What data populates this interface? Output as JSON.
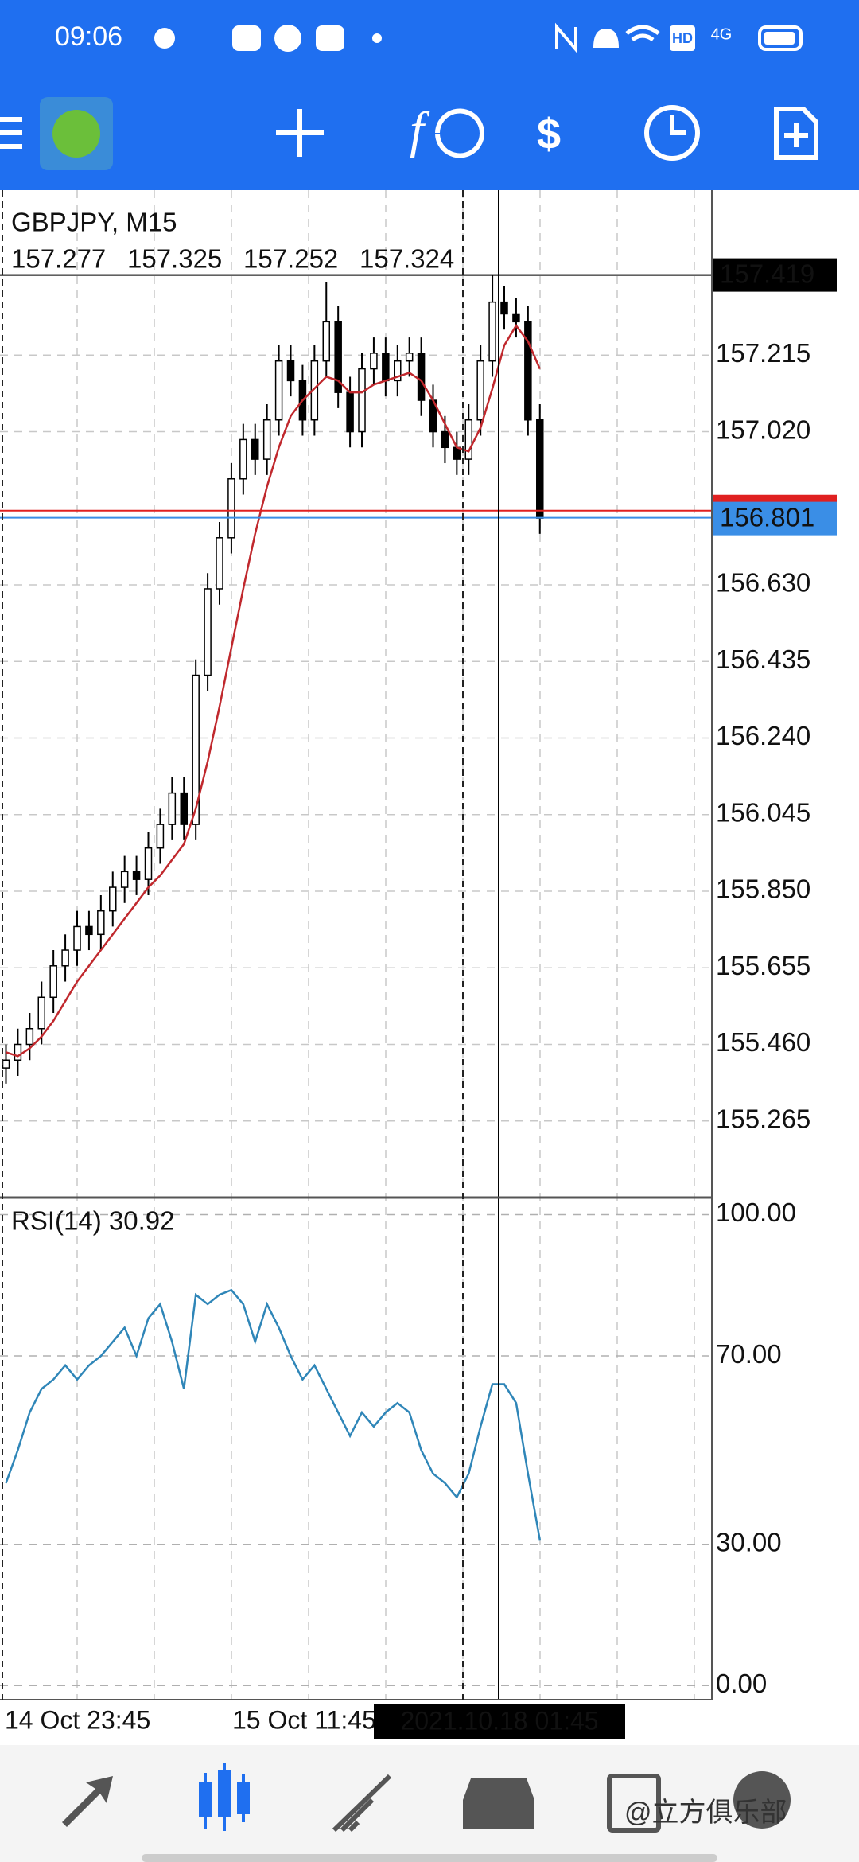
{
  "status_bar": {
    "time": "09:06",
    "hd": "HD",
    "network": "4G"
  },
  "chart_data": {
    "type": "candlestick",
    "title": "GBPJPY, M15",
    "info_values": [
      157.277,
      157.325,
      157.252,
      157.324
    ],
    "open": [
      155.4,
      155.42,
      155.46,
      155.5,
      155.58,
      155.66,
      155.7,
      155.76,
      155.74,
      155.8,
      155.86,
      155.9,
      155.88,
      155.96,
      156.02,
      156.1,
      156.02,
      156.4,
      156.62,
      156.75,
      156.9,
      157.0,
      156.95,
      157.05,
      157.2,
      157.15,
      157.05,
      157.2,
      157.3,
      157.12,
      157.02,
      157.18,
      157.22,
      157.15,
      157.2,
      157.22,
      157.1,
      157.02,
      156.98,
      156.95,
      157.05,
      157.2,
      157.35,
      157.32,
      157.3,
      157.05
    ],
    "high": [
      155.46,
      155.5,
      155.54,
      155.62,
      155.7,
      155.74,
      155.8,
      155.8,
      155.84,
      155.9,
      155.94,
      155.94,
      156.0,
      156.06,
      156.14,
      156.14,
      156.44,
      156.66,
      156.79,
      156.94,
      157.04,
      157.04,
      157.09,
      157.24,
      157.24,
      157.19,
      157.24,
      157.4,
      157.34,
      157.16,
      157.22,
      157.26,
      157.26,
      157.24,
      157.26,
      157.26,
      157.14,
      157.06,
      157.02,
      157.09,
      157.24,
      157.42,
      157.39,
      157.36,
      157.34,
      157.09
    ],
    "low": [
      155.36,
      155.38,
      155.42,
      155.46,
      155.54,
      155.62,
      155.66,
      155.7,
      155.7,
      155.76,
      155.82,
      155.84,
      155.84,
      155.92,
      155.98,
      155.98,
      155.98,
      156.36,
      156.58,
      156.71,
      156.86,
      156.91,
      156.91,
      157.01,
      157.11,
      157.01,
      157.01,
      157.16,
      157.08,
      156.98,
      156.98,
      157.14,
      157.11,
      157.11,
      157.16,
      157.06,
      156.98,
      156.94,
      156.91,
      156.91,
      157.01,
      157.16,
      157.28,
      157.26,
      157.01,
      156.76
    ],
    "close": [
      155.42,
      155.46,
      155.5,
      155.58,
      155.66,
      155.7,
      155.76,
      155.74,
      155.8,
      155.86,
      155.9,
      155.88,
      155.96,
      156.02,
      156.1,
      156.02,
      156.4,
      156.62,
      156.75,
      156.9,
      157.0,
      156.95,
      157.05,
      157.2,
      157.15,
      157.05,
      157.2,
      157.3,
      157.12,
      157.02,
      157.18,
      157.22,
      157.15,
      157.2,
      157.22,
      157.1,
      157.02,
      156.98,
      156.95,
      157.05,
      157.2,
      157.35,
      157.32,
      157.3,
      157.05,
      156.8
    ],
    "ma": {
      "color": "#c0282d",
      "values": [
        155.44,
        155.43,
        155.45,
        155.48,
        155.52,
        155.57,
        155.62,
        155.66,
        155.7,
        155.74,
        155.78,
        155.82,
        155.86,
        155.89,
        155.93,
        155.97,
        156.06,
        156.18,
        156.32,
        156.47,
        156.62,
        156.76,
        156.88,
        156.98,
        157.06,
        157.1,
        157.13,
        157.16,
        157.15,
        157.12,
        157.12,
        157.14,
        157.15,
        157.16,
        157.17,
        157.15,
        157.1,
        157.04,
        156.98,
        156.97,
        157.03,
        157.13,
        157.24,
        157.29,
        157.25,
        157.18
      ]
    },
    "ylim": [
      155.072,
      157.635
    ],
    "yticks": [
      157.215,
      {
        "value": 157.02,
        "label": "157.020"
      },
      {
        "value": 156.63,
        "label": "156.630"
      },
      156.435,
      {
        "value": 156.24,
        "label": "156.240"
      },
      156.045,
      {
        "value": 155.85,
        "label": "155.850"
      },
      155.655,
      {
        "value": 155.46,
        "label": "155.460"
      },
      155.265
    ],
    "bid": 156.801,
    "bid_color": "#3a8ee6",
    "ask": 156.819,
    "ask_color": "#e02020",
    "crosshair": {
      "price": 157.419,
      "time": "2021.10.18 01:45"
    },
    "time_labels": [
      "14 Oct 23:45",
      "15 Oct 11:45"
    ],
    "rsi": {
      "title": "RSI(14) 30.92",
      "color": "#2f86b8",
      "values": [
        43,
        50,
        58,
        63,
        65,
        68,
        65,
        68,
        70,
        73,
        76,
        70,
        78,
        81,
        73,
        63,
        83,
        81,
        83,
        84,
        81,
        73,
        81,
        76,
        70,
        65,
        68,
        63,
        58,
        53,
        58,
        55,
        58,
        60,
        58,
        50,
        45,
        43,
        40,
        45,
        55,
        64,
        64,
        60,
        45,
        30.92
      ],
      "ylim": [
        -3,
        103.3
      ],
      "yticks": [
        {
          "value": 100,
          "label": "100.00"
        },
        {
          "value": 70,
          "label": "70.00"
        },
        {
          "value": 30,
          "label": "30.00"
        },
        {
          "value": 0,
          "label": "0.00"
        }
      ]
    }
  },
  "watermark": "@立方俱乐部"
}
